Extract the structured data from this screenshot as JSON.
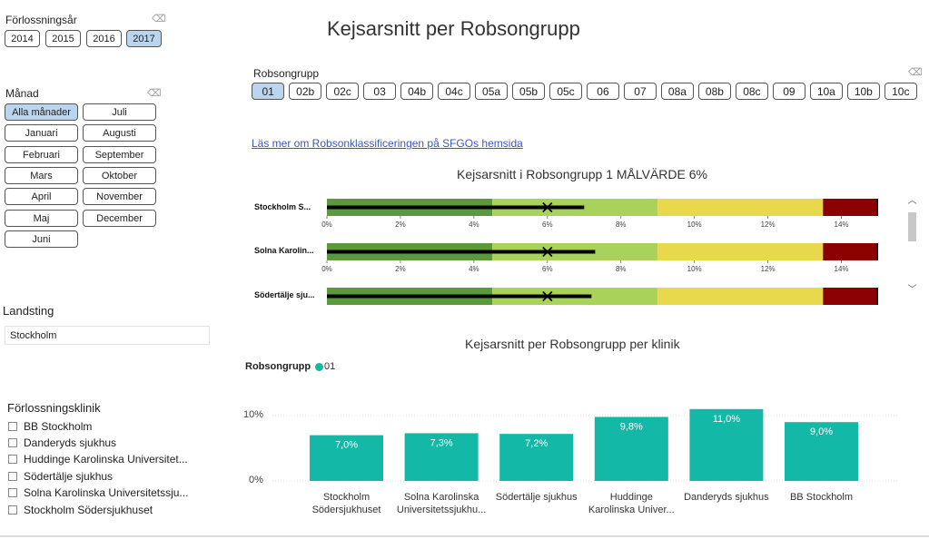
{
  "page_title": "Kejsarsnitt per Robsongrupp",
  "year_slicer": {
    "title": "Förlossningsår",
    "options": [
      "2014",
      "2015",
      "2016",
      "2017"
    ],
    "selected": "2017"
  },
  "month_slicer": {
    "title": "Månad",
    "options": [
      "Alla månader",
      "Juli",
      "Januari",
      "Augusti",
      "Februari",
      "September",
      "Mars",
      "Oktober",
      "April",
      "November",
      "Maj",
      "December",
      "Juni"
    ],
    "selected": "Alla månader"
  },
  "robson_slicer": {
    "title": "Robsongrupp",
    "options": [
      "01",
      "02b",
      "02c",
      "03",
      "04b",
      "04c",
      "05a",
      "05b",
      "05c",
      "06",
      "07",
      "08a",
      "08b",
      "08c",
      "09",
      "10a",
      "10b",
      "10c"
    ],
    "selected": "01"
  },
  "link_text": "Läs mer om Robsonklassificeringen på SFGOs hemsida",
  "landsting": {
    "title": "Landsting",
    "value": "Stockholm"
  },
  "klinik_slicer": {
    "title": "Förlossningsklinik",
    "items": [
      "BB Stockholm",
      "Danderyds sjukhus",
      "Huddinge Karolinska Universitet...",
      "Södertälje sjukhus",
      "Solna Karolinska Universitetssju...",
      "Stockholm Södersjukhuset"
    ]
  },
  "bullet_chart": {
    "title": "Kejsarsnitt i Robsongrupp 1  MÅLVÄRDE 6%",
    "rows": [
      {
        "label": "Stockholm S...",
        "value": 7.0,
        "target": 6.0
      },
      {
        "label": "Solna Karolin...",
        "value": 7.3,
        "target": 6.0
      },
      {
        "label": "Södertälje sju...",
        "value": 7.2,
        "target": 6.0
      }
    ],
    "ticks": [
      "0%",
      "2%",
      "4%",
      "6%",
      "8%",
      "10%",
      "12%",
      "14%"
    ],
    "axis_max": 15,
    "bands": [
      {
        "to": 4.5,
        "color": "#5a9a3c"
      },
      {
        "to": 9.0,
        "color": "#a8d25a"
      },
      {
        "to": 13.5,
        "color": "#e8d84c"
      },
      {
        "to": 15,
        "color": "#8b0000"
      }
    ]
  },
  "chart_data": {
    "type": "bar",
    "title": "Kejsarsnitt per Robsongrupp per klinik",
    "legend_title": "Robsongrupp",
    "series": [
      {
        "name": "01",
        "color": "#14b8a6",
        "values": [
          7.0,
          7.3,
          7.2,
          9.8,
          11.0,
          9.0
        ]
      }
    ],
    "categories": [
      "Stockholm Södersjukhuset",
      "Solna Karolinska Universitetssjukhu...",
      "Södertälje sjukhus",
      "Huddinge Karolinska Univer...",
      "Danderyds sjukhus",
      "BB Stockholm"
    ],
    "value_labels": [
      "7,0%",
      "7,3%",
      "7,2%",
      "9,8%",
      "11,0%",
      "9,0%"
    ],
    "y_ticks": [
      "0%",
      "10%"
    ],
    "ylim": [
      0,
      11
    ]
  },
  "category_label_lines": [
    [
      "Stockholm",
      "Södersjukhuset"
    ],
    [
      "Solna Karolinska",
      "Universitetssjukhu..."
    ],
    [
      "Södertälje sjukhus"
    ],
    [
      "Huddinge",
      "Karolinska Univer..."
    ],
    [
      "Danderyds sjukhus"
    ],
    [
      "BB Stockholm"
    ]
  ]
}
